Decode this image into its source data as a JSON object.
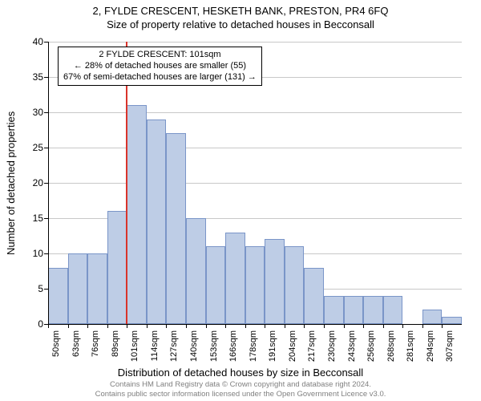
{
  "title_line1": "2, FYLDE CRESCENT, HESKETH BANK, PRESTON, PR4 6FQ",
  "title_line2": "Size of property relative to detached houses in Becconsall",
  "ylabel": "Number of detached properties",
  "xlabel": "Distribution of detached houses by size in Becconsall",
  "chart": {
    "type": "histogram",
    "ylim": [
      0,
      40
    ],
    "ytick_step": 5,
    "yticks": [
      0,
      5,
      10,
      15,
      20,
      25,
      30,
      35,
      40
    ],
    "xticks_sqm": [
      50,
      63,
      76,
      89,
      101,
      114,
      127,
      140,
      153,
      166,
      178,
      191,
      204,
      217,
      230,
      243,
      256,
      268,
      281,
      294,
      307
    ],
    "bar_values": [
      8,
      10,
      10,
      16,
      31,
      29,
      27,
      15,
      11,
      13,
      11,
      12,
      11,
      8,
      4,
      4,
      4,
      4,
      0,
      2,
      1
    ],
    "bar_fill": "#becde6",
    "bar_border": "#7a95c8",
    "grid_color": "#c8c8c8",
    "background_color": "#ffffff",
    "marker_color": "#d9342b",
    "marker_bin_index": 4,
    "yaxis_font_size": 12,
    "xaxis_font_size": 11,
    "label_font_size": 13
  },
  "annotation": {
    "line1": "2 FYLDE CRESCENT: 101sqm",
    "line2": "← 28% of detached houses are smaller (55)",
    "line3": "67% of semi-detached houses are larger (131) →"
  },
  "footer": {
    "line1": "Contains HM Land Registry data © Crown copyright and database right 2024.",
    "line2": "Contains public sector information licensed under the Open Government Licence v3.0."
  }
}
